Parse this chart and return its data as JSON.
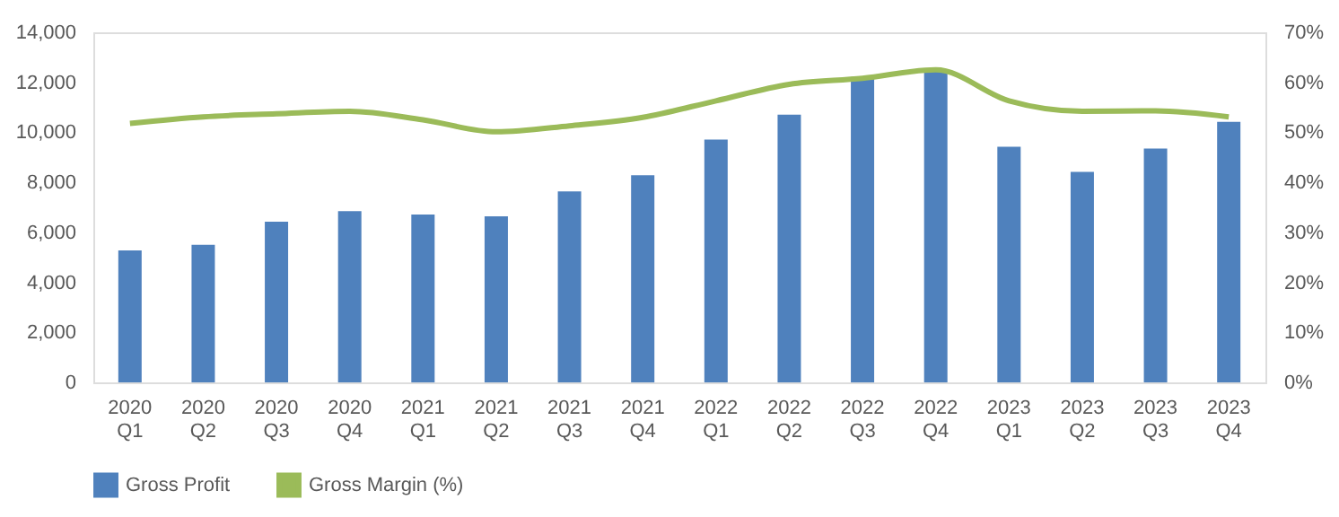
{
  "chart_data": {
    "type": "bar",
    "categories": [
      "2020 Q1",
      "2020 Q2",
      "2020 Q3",
      "2020 Q4",
      "2021 Q1",
      "2021 Q2",
      "2021 Q3",
      "2021 Q4",
      "2022 Q1",
      "2022 Q2",
      "2022 Q3",
      "2022 Q4",
      "2023 Q1",
      "2023 Q2",
      "2023 Q3",
      "2023 Q4"
    ],
    "series": [
      {
        "name": "Gross Profit",
        "color": "#4f81bd",
        "values": [
          5280,
          5500,
          6430,
          6850,
          6710,
          6640,
          7640,
          8280,
          9710,
          10710,
          12210,
          12420,
          9420,
          8420,
          9350,
          10420
        ]
      },
      {
        "name": "Gross Margin (%)",
        "type": "line",
        "axis": "y2",
        "color": "#9bbb59",
        "values": [
          51.8,
          53.1,
          53.7,
          54.2,
          52.5,
          50.1,
          51.3,
          53.0,
          56.3,
          59.6,
          60.8,
          62.5,
          56.3,
          54.2,
          54.3,
          53.1
        ]
      }
    ],
    "ylim": [
      0,
      14000
    ],
    "yticks": [
      0,
      {
        "value": 2000,
        "label": "2,000"
      },
      {
        "value": 4000,
        "label": "4,000"
      },
      {
        "value": 6000,
        "label": "6,000"
      },
      {
        "value": 8000,
        "label": "8,000"
      },
      {
        "value": 10000,
        "label": "10,000"
      },
      {
        "value": 12000,
        "label": "12,000"
      },
      {
        "value": 14000,
        "label": "14,000"
      }
    ],
    "y2lim": [
      0,
      70
    ],
    "y2ticks": [
      {
        "value": 0,
        "label": "0%"
      },
      {
        "value": 10,
        "label": "10%"
      },
      {
        "value": 20,
        "label": "20%"
      },
      {
        "value": 30,
        "label": "30%"
      },
      {
        "value": 40,
        "label": "40%"
      },
      {
        "value": 50,
        "label": "50%"
      },
      {
        "value": 60,
        "label": "60%"
      },
      {
        "value": 70,
        "label": "70%"
      }
    ],
    "grid": false,
    "legend": "bottom",
    "marker": "none",
    "line_style": "solid"
  }
}
